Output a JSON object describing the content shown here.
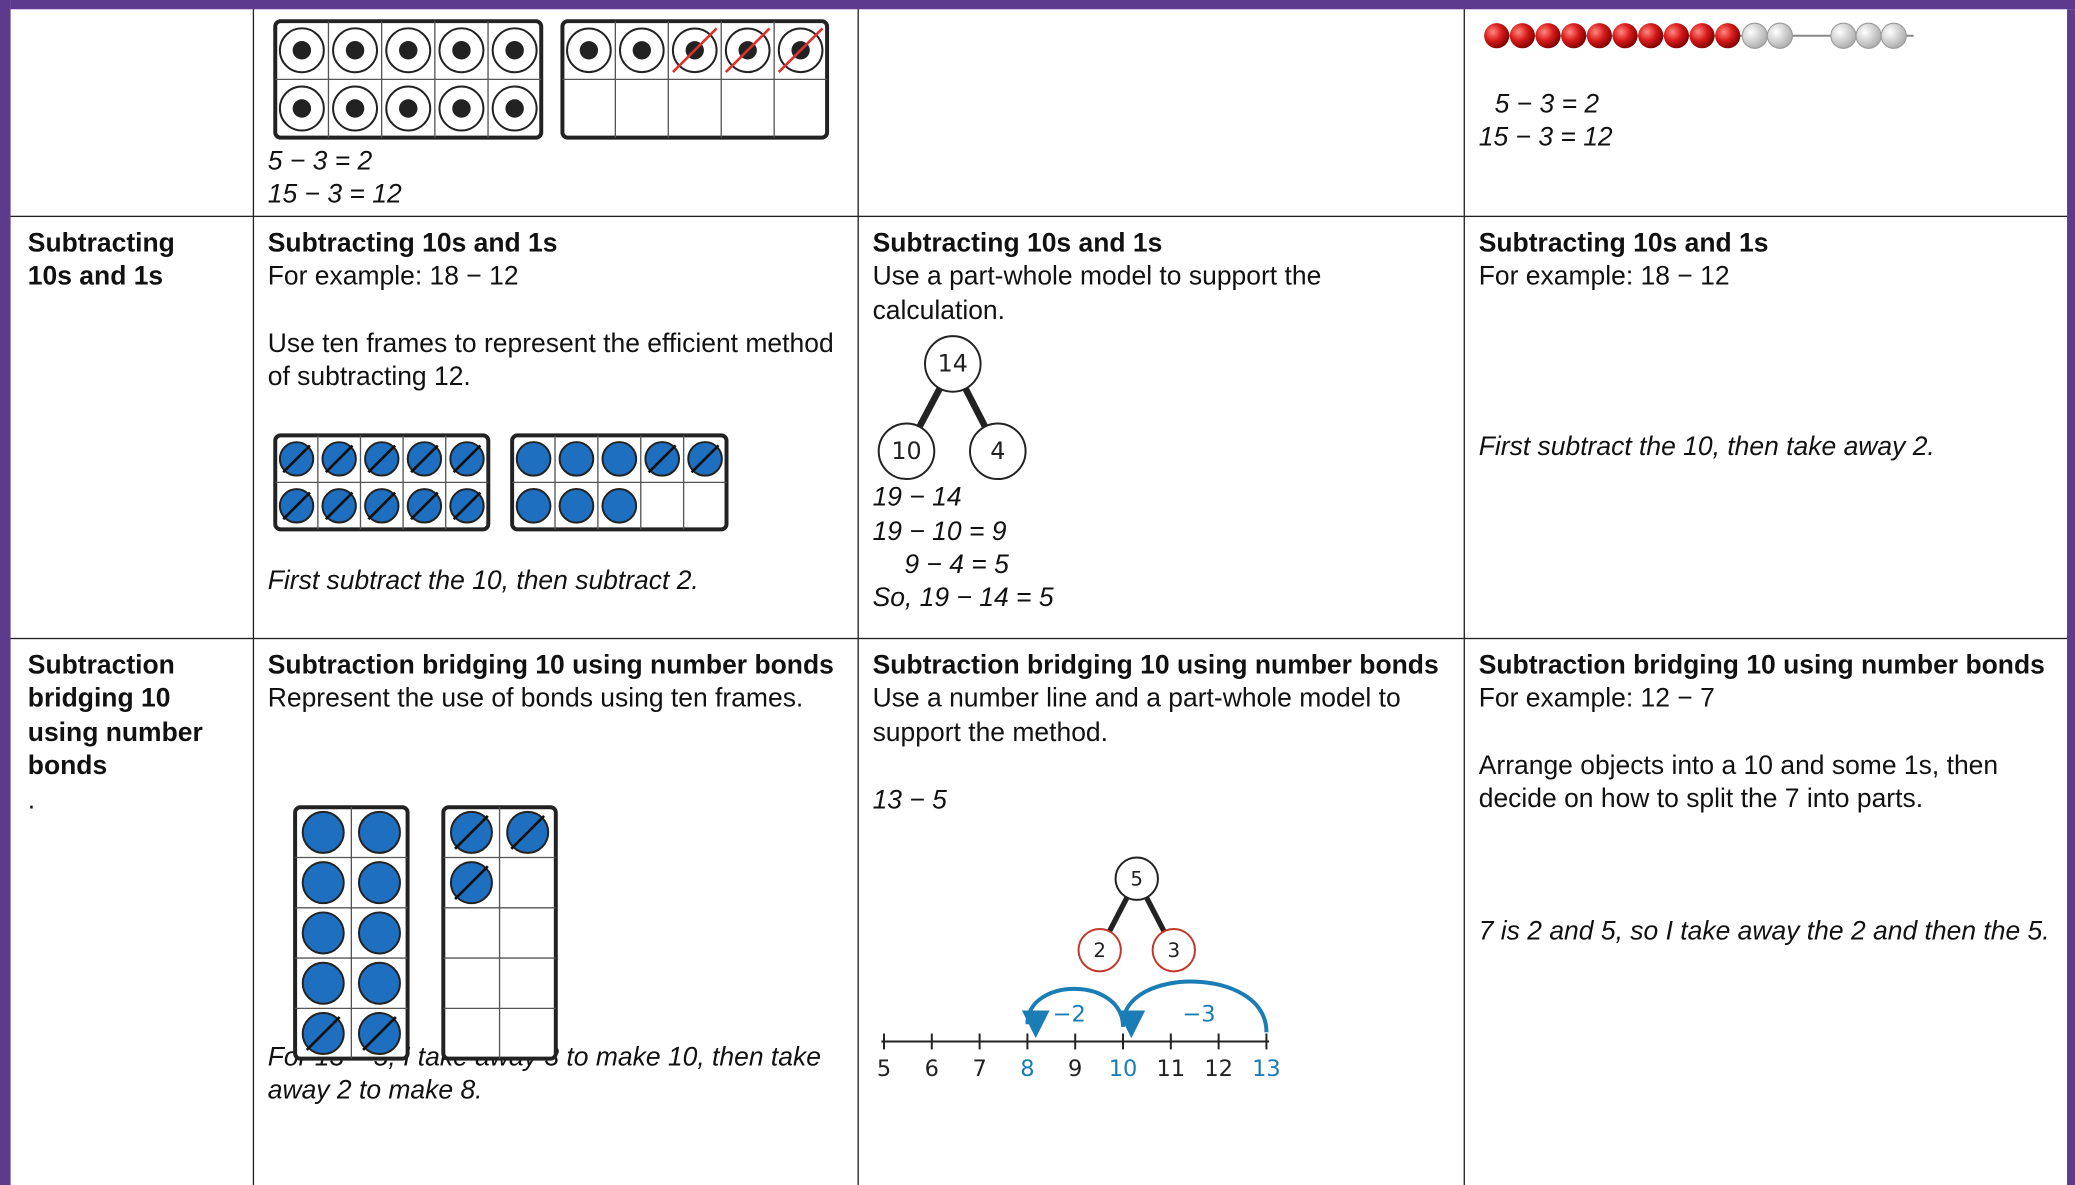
{
  "rows": [
    {
      "method_1": {
        "equations": [
          "5 − 3 = 2",
          "15 − 3 = 12"
        ]
      },
      "method_3": {
        "equations": [
          "5 − 3 = 2",
          "15 − 3 = 12"
        ]
      }
    },
    {
      "topic": "Subtracting 10s and 1s",
      "method_1": {
        "heading": "Subtracting 10s and 1s",
        "lines": [
          "For example: 18 − 12",
          "Use ten frames to represent the efficient method of subtracting 12."
        ],
        "note": "First subtract the 10, then subtract 2."
      },
      "method_2": {
        "heading": "Subtracting 10s and 1s",
        "lines": [
          "Use a part-whole model to support the calculation."
        ],
        "model": {
          "whole": 14,
          "parts": [
            10,
            4
          ]
        },
        "working": [
          "19 − 14",
          "19 − 10 = 9",
          "9 − 4 = 5",
          "So, 19 − 14 = 5"
        ]
      },
      "method_3": {
        "heading": "Subtracting 10s and 1s",
        "lines": [
          "For example: 18 − 12"
        ],
        "note": "First subtract the 10, then take away 2."
      }
    },
    {
      "topic": "Subtraction bridging 10 using number bonds",
      "topic_note": ".",
      "method_1": {
        "heading": "Subtraction bridging 10 using number bonds",
        "lines": [
          "Represent the use of bonds using ten frames."
        ],
        "note": "For 13 – 5, I take away 3 to make 10, then take away 2 to make 8."
      },
      "method_2": {
        "heading": "Subtraction bridging 10 using number bonds",
        "lines": [
          "Use a number line and a part-whole model to support the method."
        ],
        "working": [
          "13 − 5"
        ],
        "model": {
          "whole": 5,
          "parts": [
            2,
            3
          ]
        },
        "jumps": [
          "−2",
          "−3"
        ],
        "number_line": [
          5,
          6,
          7,
          8,
          9,
          10,
          11,
          12,
          13
        ]
      },
      "method_3": {
        "heading": "Subtraction bridging 10 using number bonds",
        "lines": [
          "For example: 12 − 7",
          "Arrange objects into a 10 and some 1s, then decide on how to split the 7 into parts."
        ],
        "note": "7 is 2 and 5, so I take away the 2 and then the 5."
      }
    }
  ]
}
